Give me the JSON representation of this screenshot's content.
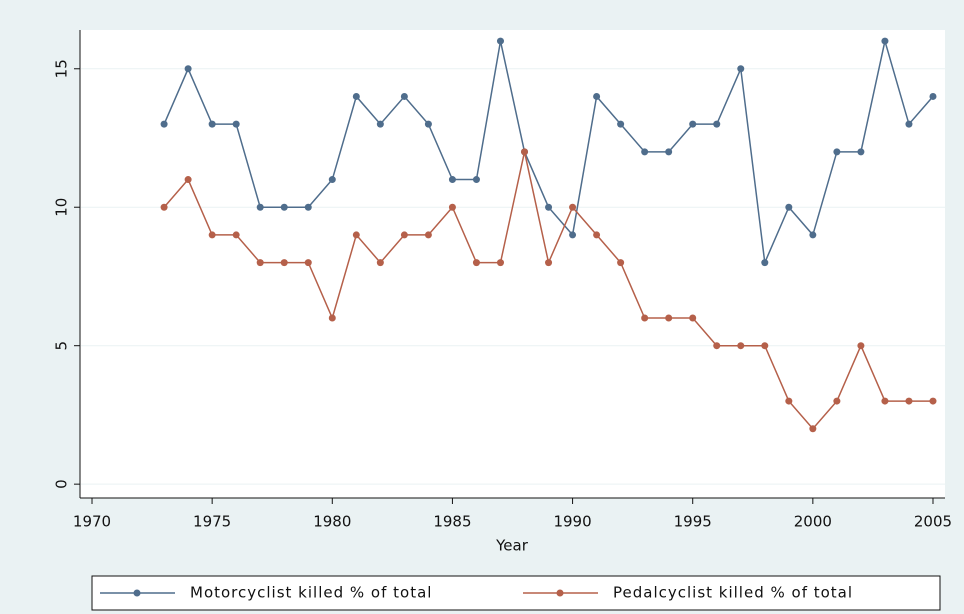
{
  "chart_data": {
    "type": "line",
    "x_label": "Year",
    "x": [
      1973,
      1974,
      1975,
      1976,
      1977,
      1978,
      1979,
      1980,
      1981,
      1982,
      1983,
      1984,
      1985,
      1986,
      1987,
      1988,
      1989,
      1990,
      1991,
      1992,
      1993,
      1994,
      1995,
      1996,
      1997,
      1998,
      1999,
      2000,
      2001,
      2002,
      2003,
      2004,
      2005
    ],
    "series": [
      {
        "name": "Motorcyclist killed % of total",
        "color": "#4f6d8c",
        "values": [
          13,
          15,
          13,
          13,
          10,
          10,
          10,
          11,
          14,
          13,
          14,
          13,
          11,
          11,
          16,
          12,
          10,
          9,
          14,
          13,
          12,
          12,
          13,
          13,
          15,
          8,
          10,
          9,
          12,
          12,
          16,
          13,
          14
        ]
      },
      {
        "name": "Pedalcyclist  killed % of total",
        "color": "#b5604a",
        "values": [
          10,
          11,
          9,
          9,
          8,
          8,
          8,
          6,
          9,
          8,
          9,
          9,
          10,
          8,
          8,
          12,
          8,
          10,
          9,
          8,
          6,
          6,
          6,
          5,
          5,
          5,
          3,
          2,
          3,
          5,
          3,
          3,
          3
        ]
      }
    ],
    "xlim": [
      1969.5,
      2005.5
    ],
    "xticks": [
      1970,
      1975,
      1980,
      1985,
      1990,
      1995,
      2000,
      2005
    ],
    "ylim": [
      -0.5,
      16.4
    ],
    "yticks": [
      0,
      5,
      10,
      15
    ],
    "grid": true,
    "legend": "bottom"
  }
}
